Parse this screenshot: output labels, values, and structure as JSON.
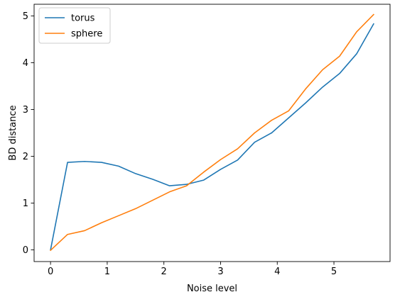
{
  "chart_data": {
    "type": "line",
    "title": "",
    "xlabel": "Noise level",
    "ylabel": "BD distance",
    "xlim": [
      -0.29,
      5.99
    ],
    "ylim": [
      -0.25,
      5.25
    ],
    "xticks": [
      0,
      1,
      2,
      3,
      4,
      5
    ],
    "yticks": [
      0,
      1,
      2,
      3,
      4,
      5
    ],
    "grid": false,
    "legend": "top-left",
    "x": [
      0,
      0.3,
      0.6,
      0.9,
      1.2,
      1.5,
      1.8,
      2.1,
      2.4,
      2.7,
      3.0,
      3.3,
      3.6,
      3.9,
      4.2,
      4.5,
      4.8,
      5.1,
      5.4,
      5.7
    ],
    "series": [
      {
        "name": "torus",
        "color": "#1f77b4",
        "values": [
          0.0,
          1.87,
          1.89,
          1.87,
          1.79,
          1.63,
          1.51,
          1.37,
          1.4,
          1.49,
          1.72,
          1.92,
          2.3,
          2.5,
          2.82,
          3.14,
          3.48,
          3.77,
          4.19,
          4.83
        ]
      },
      {
        "name": "sphere",
        "color": "#ff7f0e",
        "values": [
          -0.01,
          0.33,
          0.41,
          0.58,
          0.73,
          0.88,
          1.06,
          1.24,
          1.37,
          1.66,
          1.93,
          2.16,
          2.5,
          2.77,
          2.97,
          3.44,
          3.85,
          4.14,
          4.66,
          5.03
        ]
      }
    ]
  }
}
